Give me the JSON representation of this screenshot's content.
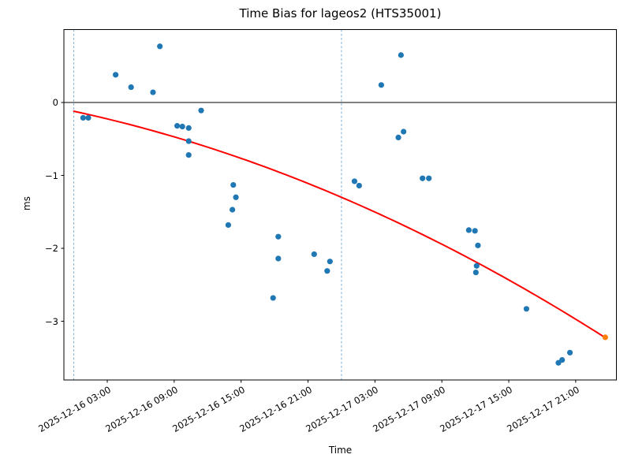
{
  "chart_data": {
    "type": "scatter",
    "title": "Time Bias for lageos2 (HTS35001)",
    "xlabel": "Time",
    "ylabel": "ms",
    "x_ref_date": "2025-12-16",
    "xlim_hours": [
      -0.89,
      48.65
    ],
    "ylim": [
      -3.805,
      1.0
    ],
    "grid": false,
    "legend": "none",
    "y_ticks": [
      0,
      -1,
      -2,
      -3
    ],
    "y_tick_labels": [
      "0",
      "−1",
      "−2",
      "−3"
    ],
    "x_ticks_hours": [
      3,
      9,
      15,
      21,
      27,
      33,
      39,
      45
    ],
    "x_tick_labels": [
      "2025-12-16 03:00",
      "2025-12-16 09:00",
      "2025-12-16 15:00",
      "2025-12-16 21:00",
      "2025-12-17 03:00",
      "2025-12-17 09:00",
      "2025-12-17 15:00",
      "2025-12-17 21:00"
    ],
    "day_boundary_lines_hours": [
      0,
      24
    ],
    "zero_line": {
      "y": 0,
      "color": "#000000"
    },
    "colors": {
      "observations": "#1f77b4",
      "extrapolated_point": "#ff7f0e",
      "fit_curve": "#ff0000",
      "day_boundary": "#6ea6d0",
      "axes": "#000000",
      "background": "#ffffff"
    },
    "series": [
      {
        "name": "observations",
        "marker": "circle",
        "color": "#1f77b4",
        "points": [
          {
            "t": "2025-12-16 00:50",
            "ms": -0.21
          },
          {
            "t": "2025-12-16 01:18",
            "ms": -0.21
          },
          {
            "t": "2025-12-16 03:45",
            "ms": 0.38
          },
          {
            "t": "2025-12-16 05:08",
            "ms": 0.21
          },
          {
            "t": "2025-12-16 07:06",
            "ms": 0.14
          },
          {
            "t": "2025-12-16 07:43",
            "ms": 0.77
          },
          {
            "t": "2025-12-16 09:16",
            "ms": -0.32
          },
          {
            "t": "2025-12-16 09:44",
            "ms": -0.33
          },
          {
            "t": "2025-12-16 10:18",
            "ms": -0.35
          },
          {
            "t": "2025-12-16 10:18",
            "ms": -0.53
          },
          {
            "t": "2025-12-16 10:18",
            "ms": -0.72
          },
          {
            "t": "2025-12-16 11:25",
            "ms": -0.11
          },
          {
            "t": "2025-12-16 13:51",
            "ms": -1.68
          },
          {
            "t": "2025-12-16 14:13",
            "ms": -1.47
          },
          {
            "t": "2025-12-16 14:18",
            "ms": -1.13
          },
          {
            "t": "2025-12-16 14:32",
            "ms": -1.3
          },
          {
            "t": "2025-12-16 17:52",
            "ms": -2.68
          },
          {
            "t": "2025-12-16 18:20",
            "ms": -1.84
          },
          {
            "t": "2025-12-16 18:20",
            "ms": -2.14
          },
          {
            "t": "2025-12-16 21:33",
            "ms": -2.08
          },
          {
            "t": "2025-12-16 22:43",
            "ms": -2.31
          },
          {
            "t": "2025-12-16 22:58",
            "ms": -2.18
          },
          {
            "t": "2025-12-17 01:10",
            "ms": -1.08
          },
          {
            "t": "2025-12-17 01:35",
            "ms": -1.14
          },
          {
            "t": "2025-12-17 03:34",
            "ms": 0.24
          },
          {
            "t": "2025-12-17 05:06",
            "ms": -0.48
          },
          {
            "t": "2025-12-17 05:20",
            "ms": 0.65
          },
          {
            "t": "2025-12-17 05:34",
            "ms": -0.4
          },
          {
            "t": "2025-12-17 07:16",
            "ms": -1.04
          },
          {
            "t": "2025-12-17 07:50",
            "ms": -1.04
          },
          {
            "t": "2025-12-17 11:25",
            "ms": -1.75
          },
          {
            "t": "2025-12-17 11:58",
            "ms": -1.76
          },
          {
            "t": "2025-12-17 12:14",
            "ms": -1.96
          },
          {
            "t": "2025-12-17 12:07",
            "ms": -2.24
          },
          {
            "t": "2025-12-17 12:03",
            "ms": -2.33
          },
          {
            "t": "2025-12-17 16:35",
            "ms": -2.83
          },
          {
            "t": "2025-12-17 19:27",
            "ms": -3.57
          },
          {
            "t": "2025-12-17 19:47",
            "ms": -3.53
          },
          {
            "t": "2025-12-17 20:29",
            "ms": -3.43
          }
        ]
      },
      {
        "name": "extrapolated-point",
        "marker": "circle",
        "color": "#ff7f0e",
        "points": [
          {
            "t": "2025-12-17 23:39",
            "ms": -3.22
          }
        ]
      }
    ],
    "fit_curve": {
      "name": "quadratic-fit",
      "color": "#ff0000",
      "coeffs_vs_hours": [
        -0.12,
        -0.032931,
        -0.0006765
      ],
      "t_range_hours": [
        0,
        47.65
      ]
    }
  }
}
